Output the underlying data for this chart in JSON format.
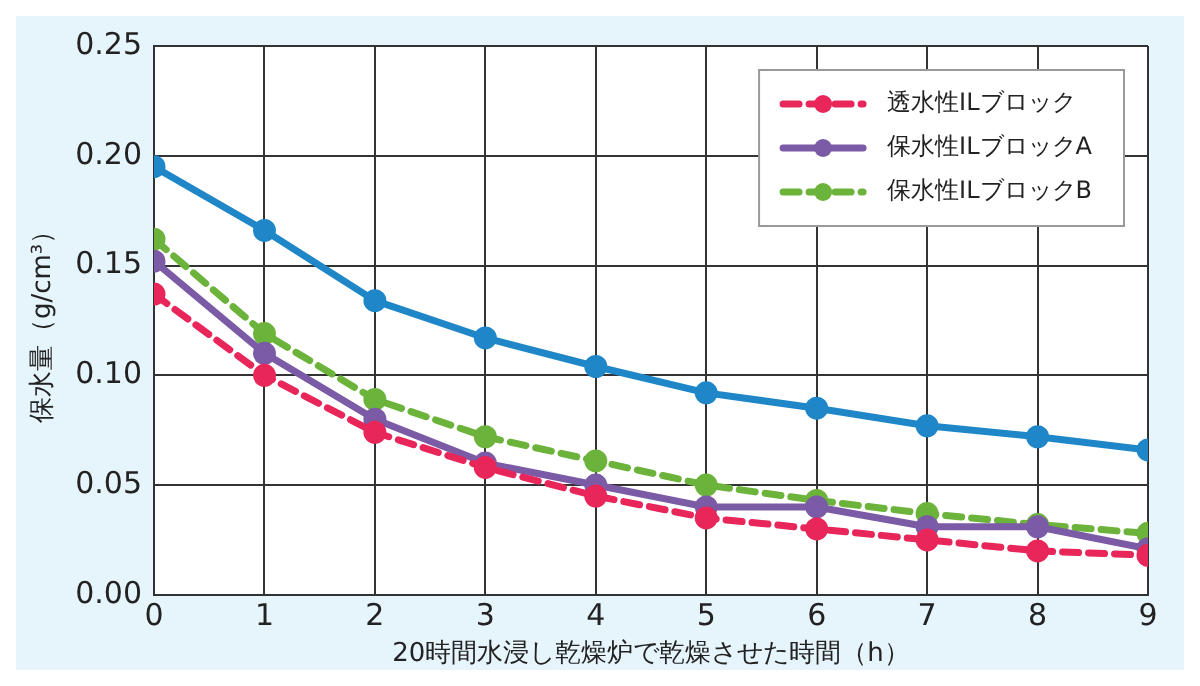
{
  "chart_data": {
    "type": "line",
    "xlabel": "20時間水浸し乾燥炉で乾燥させた時間（h）",
    "ylabel": "保水量（g/cm³）",
    "x": [
      0,
      1,
      2,
      3,
      4,
      5,
      6,
      7,
      8,
      9
    ],
    "series": [
      {
        "color": "#1f87c8",
        "line_style": "solid",
        "values": [
          0.195,
          0.166,
          0.134,
          0.117,
          0.104,
          0.092,
          0.085,
          0.077,
          0.072,
          0.066
        ]
      },
      {
        "name": "透水性ILブロック",
        "color": "#e8265a",
        "line_style": "dashed",
        "values": [
          0.137,
          0.1,
          0.074,
          0.058,
          0.045,
          0.035,
          0.03,
          0.025,
          0.02,
          0.018
        ]
      },
      {
        "name": "保水性ILブロックA",
        "color": "#7b5aa6",
        "line_style": "solid",
        "values": [
          0.152,
          0.11,
          0.08,
          0.06,
          0.05,
          0.04,
          0.04,
          0.031,
          0.031,
          0.021
        ]
      },
      {
        "name": "保水性ILブロックB",
        "color": "#6bb33a",
        "line_style": "dashed",
        "values": [
          0.162,
          0.119,
          0.089,
          0.072,
          0.061,
          0.05,
          0.043,
          0.037,
          0.032,
          0.028
        ]
      }
    ],
    "xlim": [
      0,
      9
    ],
    "xticks": [
      0,
      1,
      2,
      3,
      4,
      5,
      6,
      7,
      8,
      9
    ],
    "ylim": [
      0,
      0.25
    ],
    "yticks": [
      {
        "value": 0,
        "label": "0.00"
      },
      {
        "value": 0.05,
        "label": "0.05"
      },
      {
        "value": 0.1,
        "label": "0.10"
      },
      {
        "value": 0.15,
        "label": "0.15"
      },
      {
        "value": 0.2,
        "label": "0.20"
      },
      0.25
    ],
    "grid": true,
    "legend": "top right",
    "marker": "circle"
  }
}
